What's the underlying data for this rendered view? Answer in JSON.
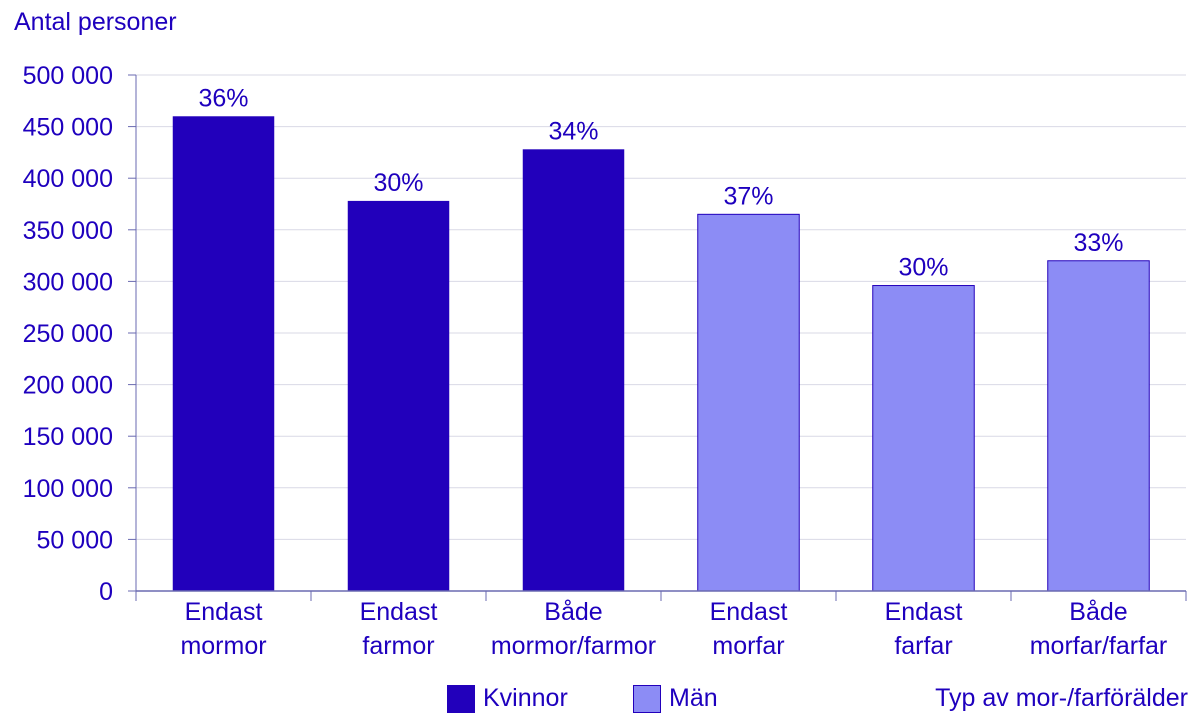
{
  "chart_data": {
    "type": "bar",
    "ylabel": "Antal personer",
    "xlabel": "Typ av mor-/farförälder",
    "ylim": [
      0,
      500000
    ],
    "yticks": [
      0,
      50000,
      100000,
      150000,
      200000,
      250000,
      300000,
      350000,
      400000,
      450000,
      500000
    ],
    "ytick_labels": [
      "0",
      "50 000",
      "100 000",
      "150 000",
      "200 000",
      "250 000",
      "300 000",
      "350 000",
      "400 000",
      "450 000",
      "500 000"
    ],
    "categories": [
      [
        "Endast",
        "mormor"
      ],
      [
        "Endast",
        "farmor"
      ],
      [
        "Både",
        "mormor/farmor"
      ],
      [
        "Endast",
        "morfar"
      ],
      [
        "Endast",
        "farfar"
      ],
      [
        "Både",
        "morfar/farfar"
      ]
    ],
    "values": [
      460000,
      378000,
      428000,
      365000,
      296000,
      320000
    ],
    "data_labels": [
      "36%",
      "30%",
      "34%",
      "37%",
      "30%",
      "33%"
    ],
    "bar_series": [
      0,
      0,
      0,
      1,
      1,
      1
    ],
    "series": [
      {
        "name": "Kvinnor",
        "color": "#2200bb"
      },
      {
        "name": "Män",
        "color": "#8c8cf5"
      }
    ],
    "grid": true,
    "legend": "bottom",
    "text_color": "#1e00be"
  }
}
